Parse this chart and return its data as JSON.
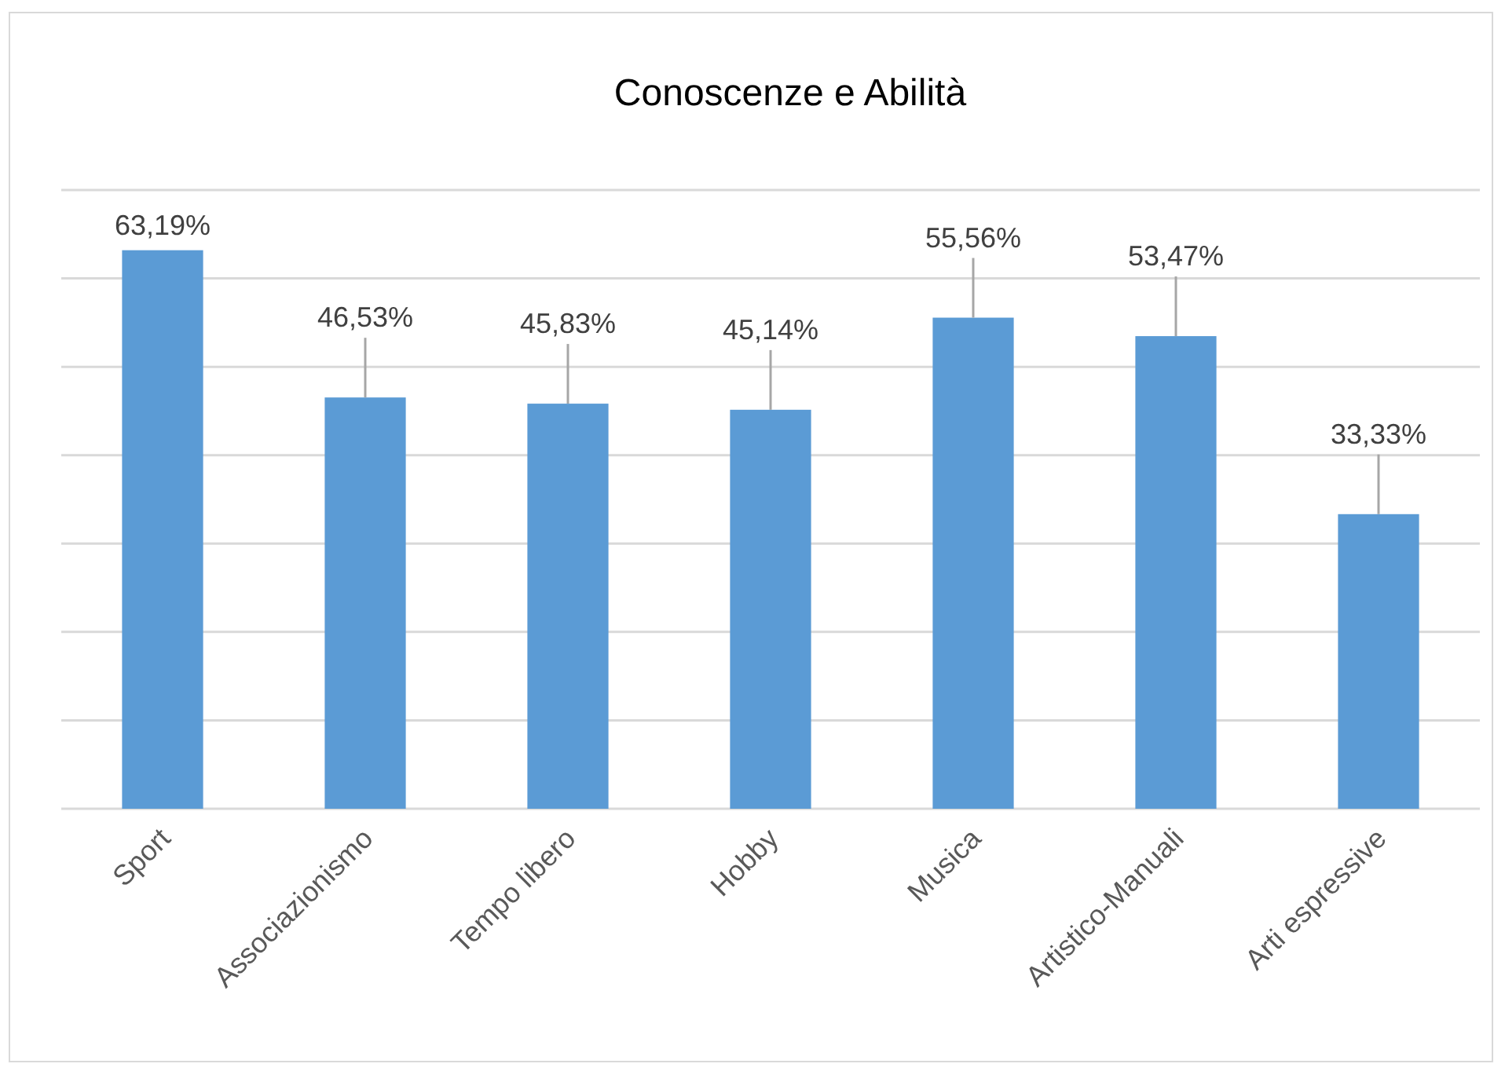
{
  "chart_data": {
    "type": "bar",
    "title": "Conoscenze e Abilità",
    "categories": [
      "Sport",
      "Associazionismo",
      "Tempo libero",
      "Hobby",
      "Musica",
      "Artistico-Manuali",
      "Arti espressive"
    ],
    "values": [
      63.19,
      46.53,
      45.83,
      45.14,
      55.56,
      53.47,
      33.33
    ],
    "value_labels": [
      "63,19%",
      "46,53%",
      "45,83%",
      "45,14%",
      "55,56%",
      "53,47%",
      "33,33%"
    ],
    "color": "#5b9bd5",
    "ylim": [
      0,
      70
    ],
    "yticks": [
      {
        "value": 0,
        "label": null
      },
      {
        "value": 10,
        "label": null
      },
      {
        "value": 20,
        "label": null
      },
      {
        "value": 30,
        "label": null
      },
      {
        "value": 40,
        "label": null
      },
      {
        "value": 50,
        "label": null
      },
      {
        "value": 60,
        "label": null
      },
      {
        "value": 70,
        "label": null
      }
    ],
    "grid": "y",
    "tick_labels": "x"
  }
}
